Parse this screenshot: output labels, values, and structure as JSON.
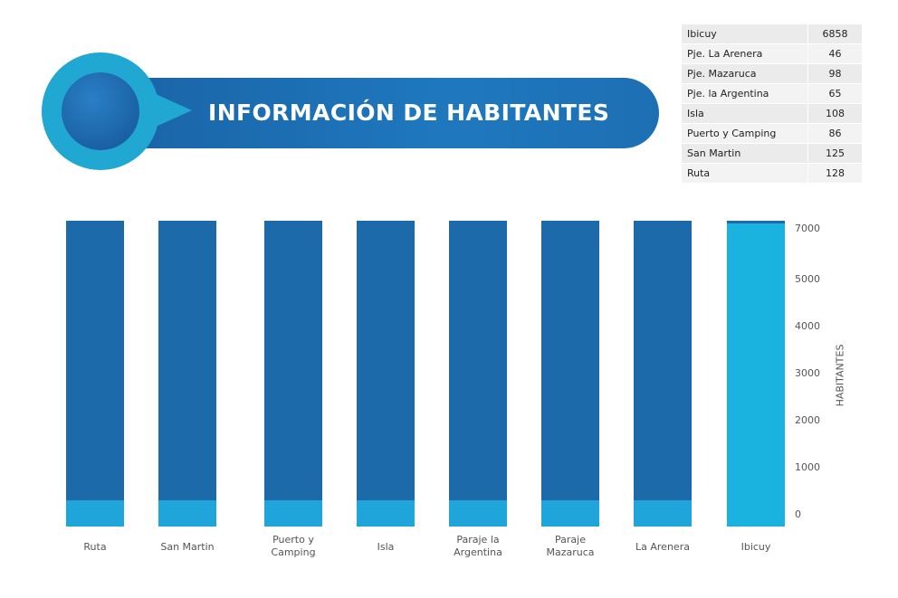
{
  "header": {
    "title": "INFORMACIÓN DE HABITANTES"
  },
  "table": {
    "rows": [
      {
        "name": "Ibicuy",
        "value": "6858"
      },
      {
        "name": "Pje. La Arenera",
        "value": "46"
      },
      {
        "name": "Pje. Mazaruca",
        "value": "98"
      },
      {
        "name": "Pje. la Argentina",
        "value": "65"
      },
      {
        "name": "Isla",
        "value": "108"
      },
      {
        "name": "Puerto y Camping",
        "value": "86"
      },
      {
        "name": "San Martin",
        "value": "125"
      },
      {
        "name": "Ruta",
        "value": "128"
      }
    ]
  },
  "colors": {
    "bar_dark": "#1d6aaa",
    "bar_light": "#1fa5d9",
    "bar_ibicuy": "#1ab3df",
    "accent_circle": "#21a8d2"
  },
  "chart_data": {
    "type": "bar",
    "categories": [
      [
        "Ruta"
      ],
      [
        "San Martin"
      ],
      [
        "Puerto y",
        "Camping"
      ],
      [
        "Isla"
      ],
      [
        "Paraje la",
        "Argentina"
      ],
      [
        "Paraje",
        "Mazaruca"
      ],
      [
        "La Arenera"
      ],
      [
        "Ibicuy"
      ]
    ],
    "values": [
      128,
      125,
      86,
      108,
      65,
      98,
      46,
      6858
    ],
    "ylabel": "HABITANTES",
    "yticks": [
      0,
      1000,
      2000,
      3000,
      4000,
      5000,
      7000
    ],
    "ylim": [
      0,
      7000
    ],
    "grid": false,
    "legend": "none"
  }
}
